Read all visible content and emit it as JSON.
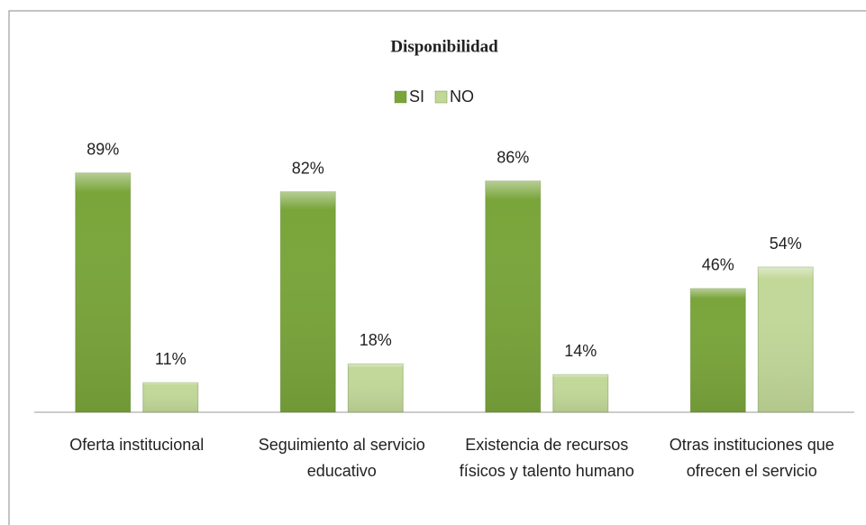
{
  "chart_data": {
    "type": "bar",
    "title": "Disponibilidad",
    "categories": [
      "Oferta institucional",
      "Seguimiento al servicio educativo",
      "Existencia de recursos físicos y talento humano",
      "Otras instituciones que ofrecen el servicio"
    ],
    "series": [
      {
        "name": "SI",
        "color": "#7aa53b",
        "values": [
          89,
          82,
          86,
          46
        ],
        "value_labels": [
          "89%",
          "82%",
          "86%",
          "46%"
        ]
      },
      {
        "name": "NO",
        "color": "#c2d899",
        "values": [
          11,
          18,
          14,
          54
        ],
        "value_labels": [
          "11%",
          "18%",
          "14%",
          "54%"
        ]
      }
    ],
    "ylim": [
      0,
      100
    ],
    "legend": "top"
  }
}
